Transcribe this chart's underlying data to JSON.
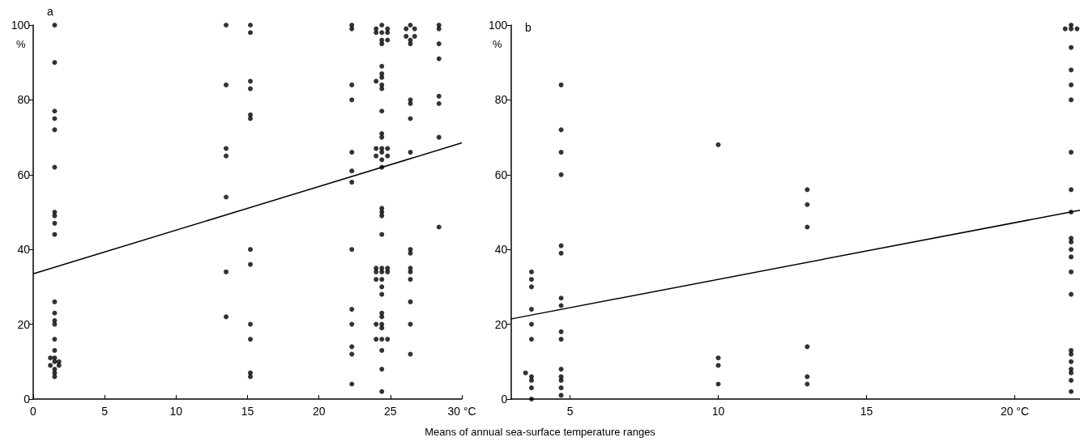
{
  "chart_data": [
    {
      "type": "scatter",
      "title": "a",
      "ylabel": "%",
      "xlabel": "Means of annual sea-surface temperature ranges",
      "xlim": [
        0,
        30
      ],
      "xticks": [
        0,
        5,
        10,
        15,
        20,
        25,
        {
          "value": 30,
          "label": "30 °C"
        }
      ],
      "ylim": [
        0,
        100
      ],
      "yticks": [
        0,
        20,
        40,
        60,
        80,
        100
      ],
      "grid": false,
      "series": [
        {
          "color": "#000000",
          "marker": "circle",
          "x": [
            1.5,
            1.5,
            1.5,
            1.5,
            1.5,
            1.5,
            1.5,
            1.5,
            1.5,
            1.5,
            1.5,
            1.5,
            1.5,
            1.5,
            1.5,
            1.5,
            1.5,
            1.5,
            1.5,
            1.5,
            1.5,
            1.2,
            1.2,
            1.8,
            1.8,
            13.5,
            13.5,
            13.5,
            13.5,
            13.5,
            13.5,
            13.5,
            15.2,
            15.2,
            15.2,
            15.2,
            15.2,
            15.2,
            15.2,
            15.2,
            15.2,
            15.2,
            15.2,
            15.2,
            22.3,
            22.3,
            22.3,
            22.3,
            22.3,
            22.3,
            22.3,
            22.3,
            22.3,
            22.3,
            22.3,
            22.3,
            22.3,
            24.4,
            24.4,
            24.4,
            24.4,
            24.4,
            24.4,
            24.4,
            24.4,
            24.4,
            24.4,
            24.4,
            24.4,
            24.4,
            24.4,
            24.4,
            24.4,
            24.4,
            24.4,
            24.4,
            24.4,
            24.4,
            24.4,
            24.4,
            24.4,
            24.4,
            24.4,
            24.4,
            24.4,
            24.4,
            24.4,
            24.4,
            24.4,
            24.4,
            24.0,
            24.0,
            24.0,
            24.0,
            24.0,
            24.0,
            24.0,
            24.0,
            24.0,
            24.0,
            24.8,
            24.8,
            24.8,
            24.8,
            24.8,
            24.8,
            24.8,
            24.8,
            26.4,
            26.4,
            26.4,
            26.4,
            26.4,
            26.4,
            26.4,
            26.4,
            26.4,
            26.4,
            26.4,
            26.4,
            26.4,
            26.4,
            26.4,
            26.1,
            26.1,
            26.7,
            26.7,
            28.4,
            28.4,
            28.4,
            28.4,
            28.4,
            28.4,
            28.4,
            28.4
          ],
          "values": [
            100,
            90,
            77,
            75,
            72,
            62,
            50,
            49,
            47,
            44,
            26,
            23,
            21,
            20,
            16,
            13,
            11,
            10,
            8,
            7,
            6,
            11,
            9,
            10,
            9,
            100,
            84,
            67,
            65,
            54,
            34,
            22,
            100,
            98,
            85,
            83,
            76,
            75,
            40,
            36,
            20,
            16,
            7,
            6,
            100,
            99,
            84,
            80,
            66,
            61,
            58,
            40,
            24,
            20,
            14,
            12,
            4,
            100,
            98,
            96,
            95,
            89,
            87,
            86,
            84,
            83,
            77,
            71,
            70,
            67,
            66,
            64,
            62,
            51,
            50,
            49,
            44,
            35,
            34,
            32,
            30,
            28,
            23,
            22,
            20,
            19,
            16,
            13,
            8,
            2,
            99,
            98,
            85,
            67,
            65,
            35,
            34,
            32,
            20,
            16,
            99,
            98,
            96,
            67,
            65,
            35,
            34,
            16,
            100,
            96,
            95,
            80,
            79,
            75,
            66,
            40,
            39,
            35,
            34,
            32,
            26,
            20,
            12,
            99,
            97,
            99,
            97,
            100,
            99,
            95,
            91,
            81,
            79,
            70,
            46
          ]
        },
        {
          "type": "line",
          "color": "#000000",
          "marker": "none",
          "line_style": "solid",
          "x": [
            0,
            30
          ],
          "values": [
            33.5,
            68.5
          ]
        }
      ]
    },
    {
      "type": "scatter",
      "title": "b",
      "ylabel": "%",
      "xlim": [
        3,
        22.2
      ],
      "xticks": [
        5,
        10,
        15,
        {
          "value": 20,
          "label": "20 °C"
        }
      ],
      "ylim": [
        0,
        100
      ],
      "yticks": [
        0,
        20,
        40,
        60,
        80,
        100
      ],
      "grid": false,
      "series": [
        {
          "color": "#000000",
          "marker": "circle",
          "x": [
            3.7,
            3.7,
            3.7,
            3.7,
            3.7,
            3.7,
            3.7,
            3.7,
            3.7,
            3.7,
            3.5,
            4.7,
            4.7,
            4.7,
            4.7,
            4.7,
            4.7,
            4.7,
            4.7,
            4.7,
            4.7,
            4.7,
            4.7,
            4.7,
            4.7,
            4.7,
            10,
            10,
            10,
            10,
            13,
            13,
            13,
            13,
            13,
            13,
            21.9,
            21.9,
            21.9,
            21.9,
            21.9,
            21.9,
            21.9,
            21.9,
            21.9,
            21.9,
            21.9,
            21.9,
            21.9,
            21.9,
            21.9,
            21.9,
            21.9,
            21.9,
            21.9,
            21.9,
            21.9,
            21.9,
            21.7,
            22.1
          ],
          "values": [
            34,
            32,
            30,
            24,
            20,
            16,
            6,
            5,
            3,
            0,
            7,
            84,
            72,
            66,
            60,
            41,
            39,
            27,
            25,
            18,
            16,
            8,
            6,
            5,
            3,
            1,
            68,
            11,
            9,
            4,
            56,
            52,
            46,
            14,
            6,
            4,
            100,
            99,
            94,
            88,
            84,
            80,
            66,
            56,
            50,
            43,
            42,
            40,
            38,
            34,
            28,
            13,
            12,
            10,
            8,
            7,
            5,
            2,
            99,
            99
          ]
        },
        {
          "type": "line",
          "color": "#000000",
          "marker": "none",
          "line_style": "solid",
          "x": [
            3,
            22.2
          ],
          "values": [
            21.4,
            50.5
          ]
        }
      ]
    }
  ]
}
